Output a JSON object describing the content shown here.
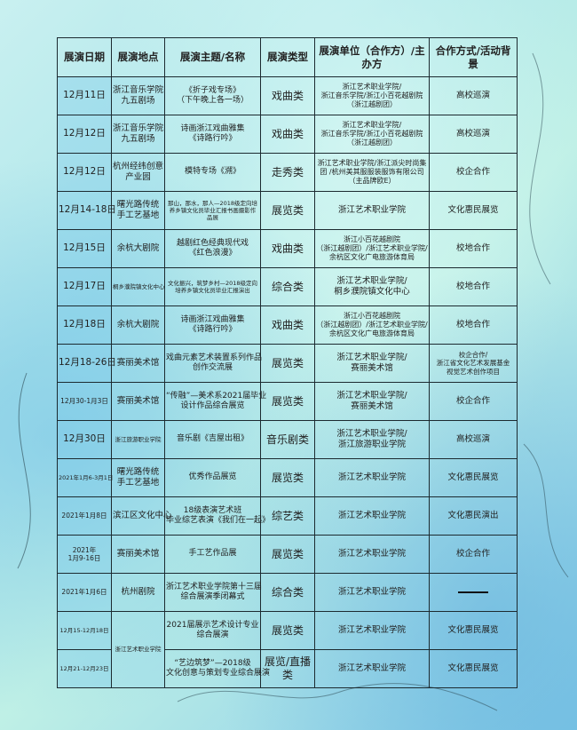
{
  "headers": [
    "展演日期",
    "展演地点",
    "展演主题/名称",
    "展演类型",
    "展演单位（合作方）/主办方",
    "合作方式/活动背景"
  ],
  "rows": [
    {
      "date": [
        "12月11日"
      ],
      "location": [
        "浙江音乐学院",
        "九五剧场"
      ],
      "theme": [
        "《折子戏专场》",
        "（下午晚上各一场）"
      ],
      "type": "戏曲类",
      "unit": [
        "浙江艺术职业学院/",
        "浙江音乐学院/浙江小百花越剧院",
        "（浙江越剧团）"
      ],
      "coop": [
        "高校巡演"
      ]
    },
    {
      "date": [
        "12月12日"
      ],
      "location": [
        "浙江音乐学院",
        "九五剧场"
      ],
      "theme": [
        "诗画浙江戏曲雅集",
        "《诗路行吟》"
      ],
      "type": "戏曲类",
      "unit": [
        "浙江艺术职业学院/",
        "浙江音乐学院/浙江小百花越剧院",
        "（浙江越剧团）"
      ],
      "coop": [
        "高校巡演"
      ]
    },
    {
      "date": [
        "12月12日"
      ],
      "location": [
        "杭州经纬创意",
        "产业园"
      ],
      "theme": [
        "模特专场《溯》"
      ],
      "type": "走秀类",
      "unit": [
        "浙江艺术职业学院/浙江派尖时尚集",
        "团 /杭州美其服服装服饰有限公司",
        "（主品牌欧E）"
      ],
      "coop": [
        "校企合作"
      ]
    },
    {
      "date": [
        "12月14-18日"
      ],
      "location": [
        "曙光路传统",
        "手工艺基地"
      ],
      "theme": [
        "那山，那水，那人—2018级定向培",
        "养乡镇文化员毕业汇报书画摄影作",
        "品展"
      ],
      "theme_small": true,
      "type": "展览类",
      "unit": [
        "浙江艺术职业学院"
      ],
      "coop": [
        "文化惠民展览"
      ]
    },
    {
      "date": [
        "12月15日"
      ],
      "location": [
        "余杭大剧院"
      ],
      "theme": [
        "越剧红色经典现代戏",
        "《红色浪漫》"
      ],
      "type": "戏曲类",
      "unit": [
        "浙江小百花越剧院",
        "（浙江越剧团）/浙江艺术职业学院/",
        "余杭区文化广电旅游体育局"
      ],
      "coop": [
        "校地合作"
      ]
    },
    {
      "date": [
        "12月17日"
      ],
      "location": [
        "桐乡濮院镇文化中心"
      ],
      "loc_small": true,
      "theme": [
        "文化振兴，筑梦乡村—2018级定向",
        "培养乡镇文化员毕业汇报演出"
      ],
      "theme_small": true,
      "type": "综合类",
      "unit": [
        "浙江艺术职业学院/",
        "桐乡濮院镇文化中心"
      ],
      "unit_big": true,
      "coop": [
        "校地合作"
      ]
    },
    {
      "date": [
        "12月18日"
      ],
      "location": [
        "余杭大剧院"
      ],
      "theme": [
        "诗画浙江戏曲雅集",
        "《诗路行吟》"
      ],
      "type": "戏曲类",
      "unit": [
        "浙江小百花越剧院",
        "（浙江越剧团）/浙江艺术职业学院/",
        "余杭区文化广电旅游体育局"
      ],
      "coop": [
        "校地合作"
      ]
    },
    {
      "date": [
        "12月18-26日"
      ],
      "location": [
        "赛丽美术馆"
      ],
      "theme": [
        "戏曲元素艺术装置系列作品",
        "创作交流展"
      ],
      "type": "展览类",
      "unit": [
        "浙江艺术职业学院/",
        "赛丽美术馆"
      ],
      "unit_big": true,
      "coop": [
        "校企合作/",
        "浙江省文化艺术发展基金",
        "视觉艺术创作项目"
      ],
      "coop_small": true
    },
    {
      "date": [
        "12月30-1月3日"
      ],
      "date_small": true,
      "location": [
        "赛丽美术馆"
      ],
      "theme": [
        "“传融”—美术系2021届毕业",
        "设计作品综合展览"
      ],
      "type": "展览类",
      "unit": [
        "浙江艺术职业学院/",
        "赛丽美术馆"
      ],
      "unit_big": true,
      "coop": [
        "校企合作"
      ]
    },
    {
      "date": [
        "12月30日"
      ],
      "location": [
        "浙江旅游职业学院"
      ],
      "loc_small": true,
      "theme": [
        "音乐剧《吉屋出租》"
      ],
      "type": "音乐剧类",
      "unit": [
        "浙江艺术职业学院/",
        "浙江旅游职业学院"
      ],
      "unit_big": true,
      "coop": [
        "高校巡演"
      ]
    },
    {
      "date": [
        "2021年1月6-3月1日"
      ],
      "date_tiny": true,
      "location": [
        "曙光路传统",
        "手工艺基地"
      ],
      "theme": [
        "优秀作品展览"
      ],
      "type": "展览类",
      "unit": [
        "浙江艺术职业学院"
      ],
      "coop": [
        "文化惠民展览"
      ]
    },
    {
      "date": [
        "2021年1月8日"
      ],
      "date_small": true,
      "location": [
        "滨江区文化中心"
      ],
      "theme": [
        "18级表演艺术班",
        "毕业综艺表演《我们在一起》"
      ],
      "type": "综艺类",
      "unit": [
        "浙江艺术职业学院"
      ],
      "coop": [
        "文化惠民演出"
      ]
    },
    {
      "date": [
        "2021年",
        "1月9-16日"
      ],
      "date_small": true,
      "location": [
        "赛丽美术馆"
      ],
      "theme": [
        "手工艺作品展"
      ],
      "type": "展览类",
      "unit": [
        "浙江艺术职业学院"
      ],
      "coop": [
        "校企合作"
      ]
    },
    {
      "date": [
        "2021年1月6日"
      ],
      "date_small": true,
      "location": [
        "杭州剧院"
      ],
      "theme": [
        "浙江艺术职业学院第十三届",
        "综合展演季闭幕式"
      ],
      "type": "综合类",
      "unit": [
        "浙江艺术职业学院"
      ],
      "coop": [],
      "coop_dash": true
    },
    {
      "date": [
        "12月15-12月18日"
      ],
      "date_tiny": true,
      "location": [
        "浙江艺术职业学院"
      ],
      "loc_small": true,
      "loc_rowspan": 2,
      "theme": [
        "2021届展示艺术设计专业",
        "综合展演"
      ],
      "type": "展览类",
      "unit": [
        "浙江艺术职业学院"
      ],
      "coop": [
        "文化惠民展览"
      ]
    },
    {
      "date": [
        "12月21-12月23日"
      ],
      "date_tiny": true,
      "location": null,
      "theme": [
        "“艺边筑梦”—2018级",
        "文化创意与策划专业综合展演"
      ],
      "type": "展览/直播类",
      "unit": [
        "浙江艺术职业学院"
      ],
      "coop": [
        "文化惠民展览"
      ]
    }
  ],
  "colors": {
    "border": "#1c2a30",
    "background": "#aee6ea"
  }
}
